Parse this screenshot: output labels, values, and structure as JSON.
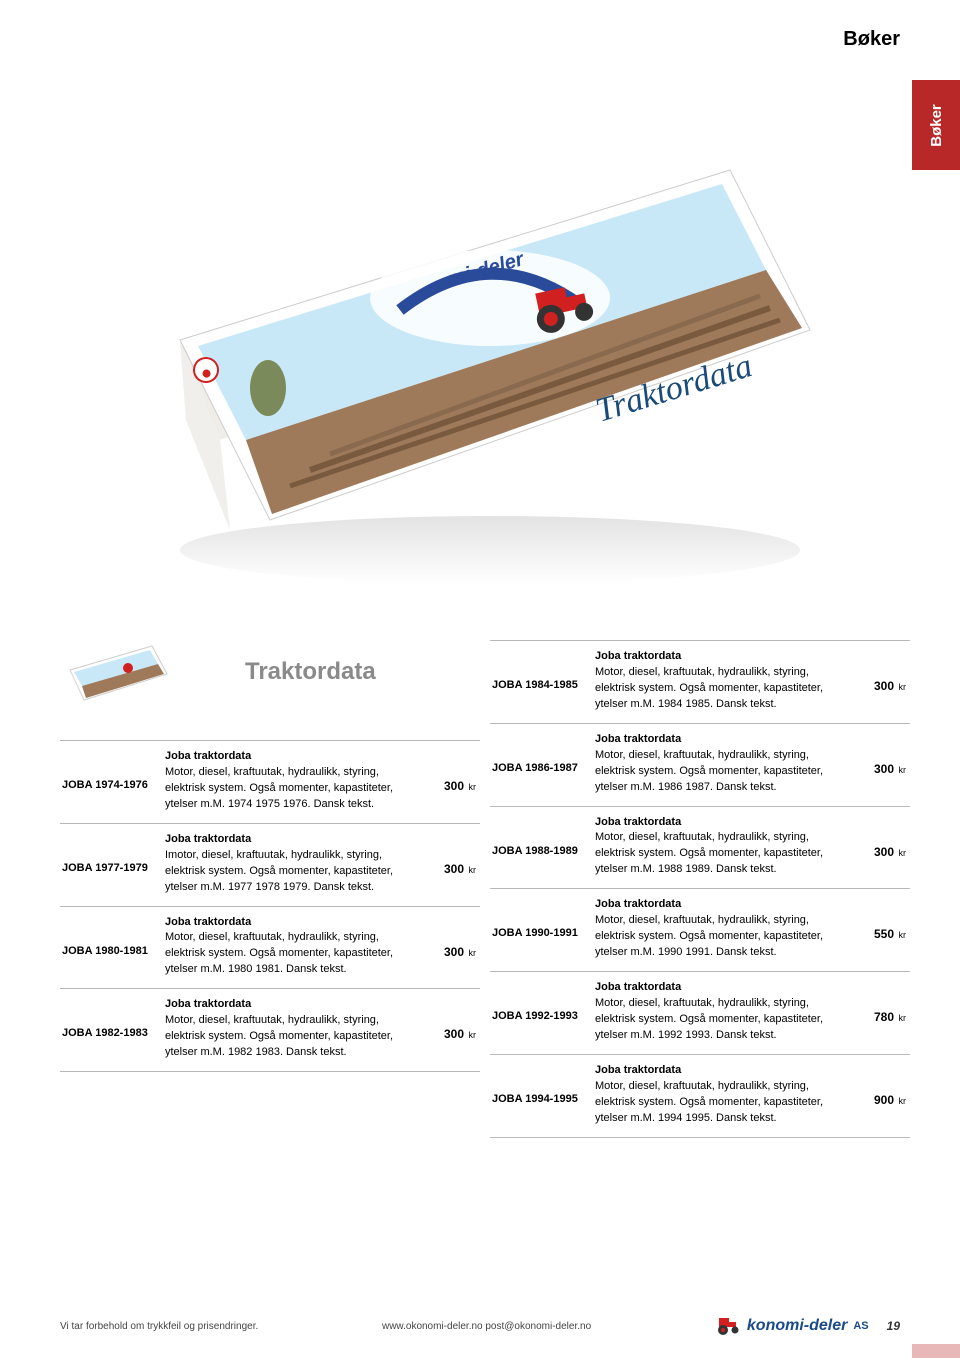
{
  "header": {
    "title": "Bøker"
  },
  "side_tab": {
    "label": "Bøker",
    "bg": "#b82828"
  },
  "section_title": "Traktordata",
  "book_image": {
    "title_on_cover": "Traktordata",
    "colors": {
      "sky": "#c8e8f8",
      "field": "#9e7a5a",
      "logo_red": "#d02020",
      "logo_blue": "#2a4a9a",
      "page_edge": "#dedede"
    }
  },
  "currency_suffix": "kr",
  "left_rows": [
    {
      "code": "JOBA 1974-1976",
      "title": "Joba traktordata",
      "desc": "Motor, diesel, kraftuutak, hydraulikk, styring, elektrisk system. Også momenter, kapastiteter, ytelser m.M. 1974 1975 1976. Dansk tekst.",
      "price": "300"
    },
    {
      "code": "JOBA 1977-1979",
      "title": "Joba traktordata",
      "desc": "Imotor, diesel, kraftuutak, hydraulikk, styring, elektrisk system. Også momenter, kapastiteter, ytelser m.M. 1977 1978 1979. Dansk tekst.",
      "price": "300"
    },
    {
      "code": "JOBA 1980-1981",
      "title": "Joba traktordata",
      "desc": "Motor, diesel, kraftuutak, hydraulikk, styring, elektrisk system. Også momenter, kapastiteter, ytelser m.M. 1980 1981.  Dansk tekst.",
      "price": "300"
    },
    {
      "code": "JOBA 1982-1983",
      "title": "Joba traktordata",
      "desc": "Motor, diesel, kraftuutak, hydraulikk, styring, elektrisk system. Også momenter, kapastiteter, ytelser m.M. 1982 1983. Dansk tekst.",
      "price": "300"
    }
  ],
  "right_rows": [
    {
      "code": "JOBA 1984-1985",
      "title": "Joba traktordata",
      "desc": "Motor, diesel, kraftuutak, hydraulikk, styring, elektrisk system. Også momenter, kapastiteter, ytelser m.M. 1984 1985. Dansk tekst.",
      "price": "300"
    },
    {
      "code": "JOBA 1986-1987",
      "title": "Joba traktordata",
      "desc": "Motor, diesel, kraftuutak, hydraulikk, styring, elektrisk system. Også momenter, kapastiteter, ytelser m.M. 1986 1987. Dansk tekst.",
      "price": "300"
    },
    {
      "code": "JOBA 1988-1989",
      "title": "Joba traktordata",
      "desc": "Motor, diesel, kraftuutak, hydraulikk, styring, elektrisk system. Også momenter, kapastiteter, ytelser m.M. 1988 1989. Dansk tekst.",
      "price": "300"
    },
    {
      "code": "JOBA 1990-1991",
      "title": "Joba traktordata",
      "desc": "Motor, diesel, kraftuutak, hydraulikk, styring, elektrisk system. Også momenter, kapastiteter, ytelser m.M. 1990 1991. Dansk tekst.",
      "price": "550"
    },
    {
      "code": "JOBA 1992-1993",
      "title": "Joba traktordata",
      "desc": "Motor, diesel, kraftuutak, hydraulikk, styring, elektrisk system. Også momenter, kapastiteter, ytelser m.M. 1992 1993. Dansk tekst.",
      "price": "780"
    },
    {
      "code": "JOBA 1994-1995",
      "title": "Joba traktordata",
      "desc": "Motor, diesel, kraftuutak, hydraulikk, styring, elektrisk system. Også momenter, kapastiteter, ytelser m.M. 1994 1995. Dansk tekst.",
      "price": "900"
    }
  ],
  "footer": {
    "left": "Vi tar forbehold om trykkfeil og prisendringer.",
    "center": "www.okonomi-deler.no   post@okonomi-deler.no",
    "logo_text": "konomi-deler",
    "logo_suffix": "AS",
    "page_num": "19"
  }
}
